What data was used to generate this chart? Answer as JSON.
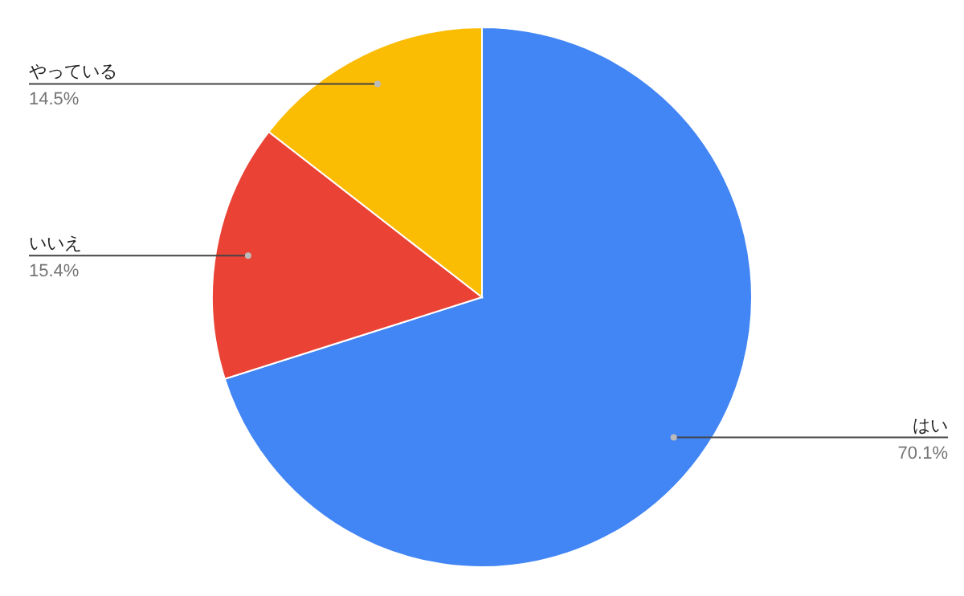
{
  "chart_data": {
    "type": "pie",
    "categories": [
      "はい",
      "いいえ",
      "やっている"
    ],
    "values": [
      70.1,
      15.4,
      14.5
    ],
    "value_labels": [
      "70.1%",
      "15.4%",
      "14.5%"
    ],
    "colors": [
      "#4285f4",
      "#ea4335",
      "#fbbc04"
    ]
  }
}
